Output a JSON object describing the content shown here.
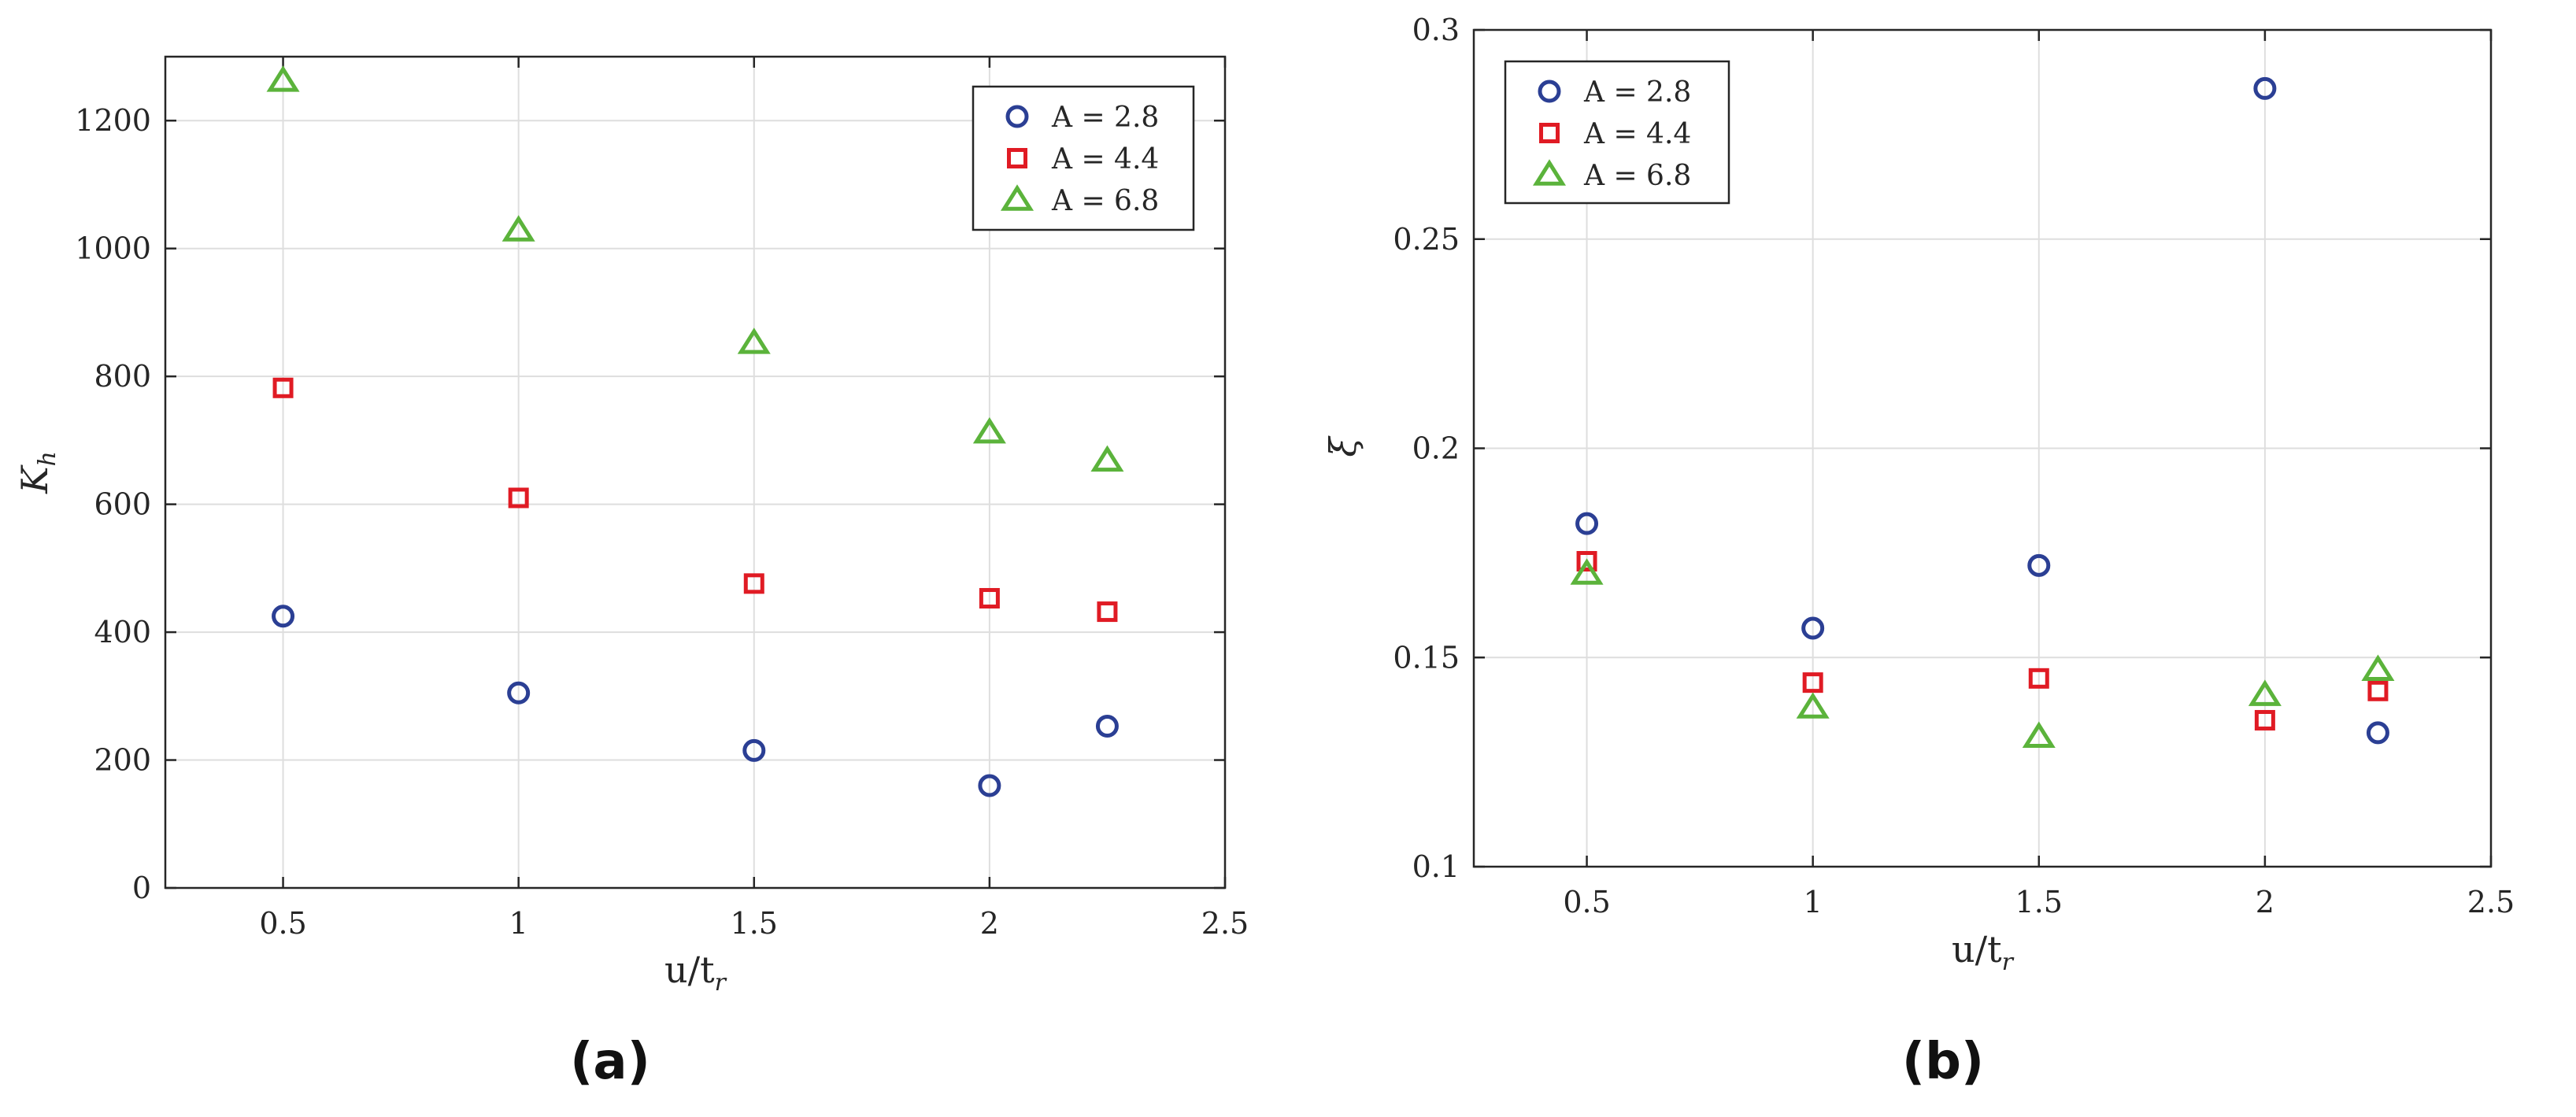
{
  "chart_data": [
    {
      "type": "scatter",
      "caption": "(a)",
      "xlabel": "u/t",
      "xlabel_sub": "r",
      "ylabel": "K",
      "ylabel_sub": "h",
      "xlim": [
        0.25,
        2.5
      ],
      "ylim": [
        0,
        1300
      ],
      "xticks": [
        0.5,
        1,
        1.5,
        2,
        2.5
      ],
      "xtick_labels": [
        "0.5",
        "1",
        "1.5",
        "2",
        "2.5"
      ],
      "yticks": [
        0,
        200,
        400,
        600,
        800,
        1000,
        1200
      ],
      "ytick_labels": [
        "0",
        "200",
        "400",
        "600",
        "800",
        "1000",
        "1200"
      ],
      "grid": true,
      "legend_position": "top-right",
      "x": [
        0.5,
        1,
        1.5,
        2,
        2.25
      ],
      "series": [
        {
          "name": "A = 2.8",
          "marker": "circle",
          "color": "#2b3f94",
          "values": [
            425,
            305,
            215,
            160,
            253
          ]
        },
        {
          "name": "A = 4.4",
          "marker": "square",
          "color": "#e01b24",
          "values": [
            782,
            610,
            476,
            453,
            432
          ]
        },
        {
          "name": "A = 6.8",
          "marker": "triangle",
          "color": "#5bb33b",
          "values": [
            1262,
            1028,
            852,
            712,
            668
          ]
        }
      ]
    },
    {
      "type": "scatter",
      "caption": "(b)",
      "xlabel": "u/t",
      "xlabel_sub": "r",
      "ylabel": "ξ",
      "ylabel_sub": "",
      "xlim": [
        0.25,
        2.5
      ],
      "ylim": [
        0.1,
        0.3
      ],
      "xticks": [
        0.5,
        1,
        1.5,
        2,
        2.5
      ],
      "xtick_labels": [
        "0.5",
        "1",
        "1.5",
        "2",
        "2.5"
      ],
      "yticks": [
        0.1,
        0.15,
        0.2,
        0.25,
        0.3
      ],
      "ytick_labels": [
        "0.1",
        "0.15",
        "0.2",
        "0.25",
        "0.3"
      ],
      "grid": true,
      "legend_position": "top-left",
      "x": [
        0.5,
        1,
        1.5,
        2,
        2.25
      ],
      "series": [
        {
          "name": "A = 2.8",
          "marker": "circle",
          "color": "#2b3f94",
          "values": [
            0.182,
            0.157,
            0.172,
            0.286,
            0.132
          ]
        },
        {
          "name": "A = 4.4",
          "marker": "square",
          "color": "#e01b24",
          "values": [
            0.173,
            0.144,
            0.145,
            0.135,
            0.142
          ]
        },
        {
          "name": "A = 6.8",
          "marker": "triangle",
          "color": "#5bb33b",
          "values": [
            0.17,
            0.138,
            0.131,
            0.141,
            0.147
          ]
        }
      ]
    }
  ]
}
